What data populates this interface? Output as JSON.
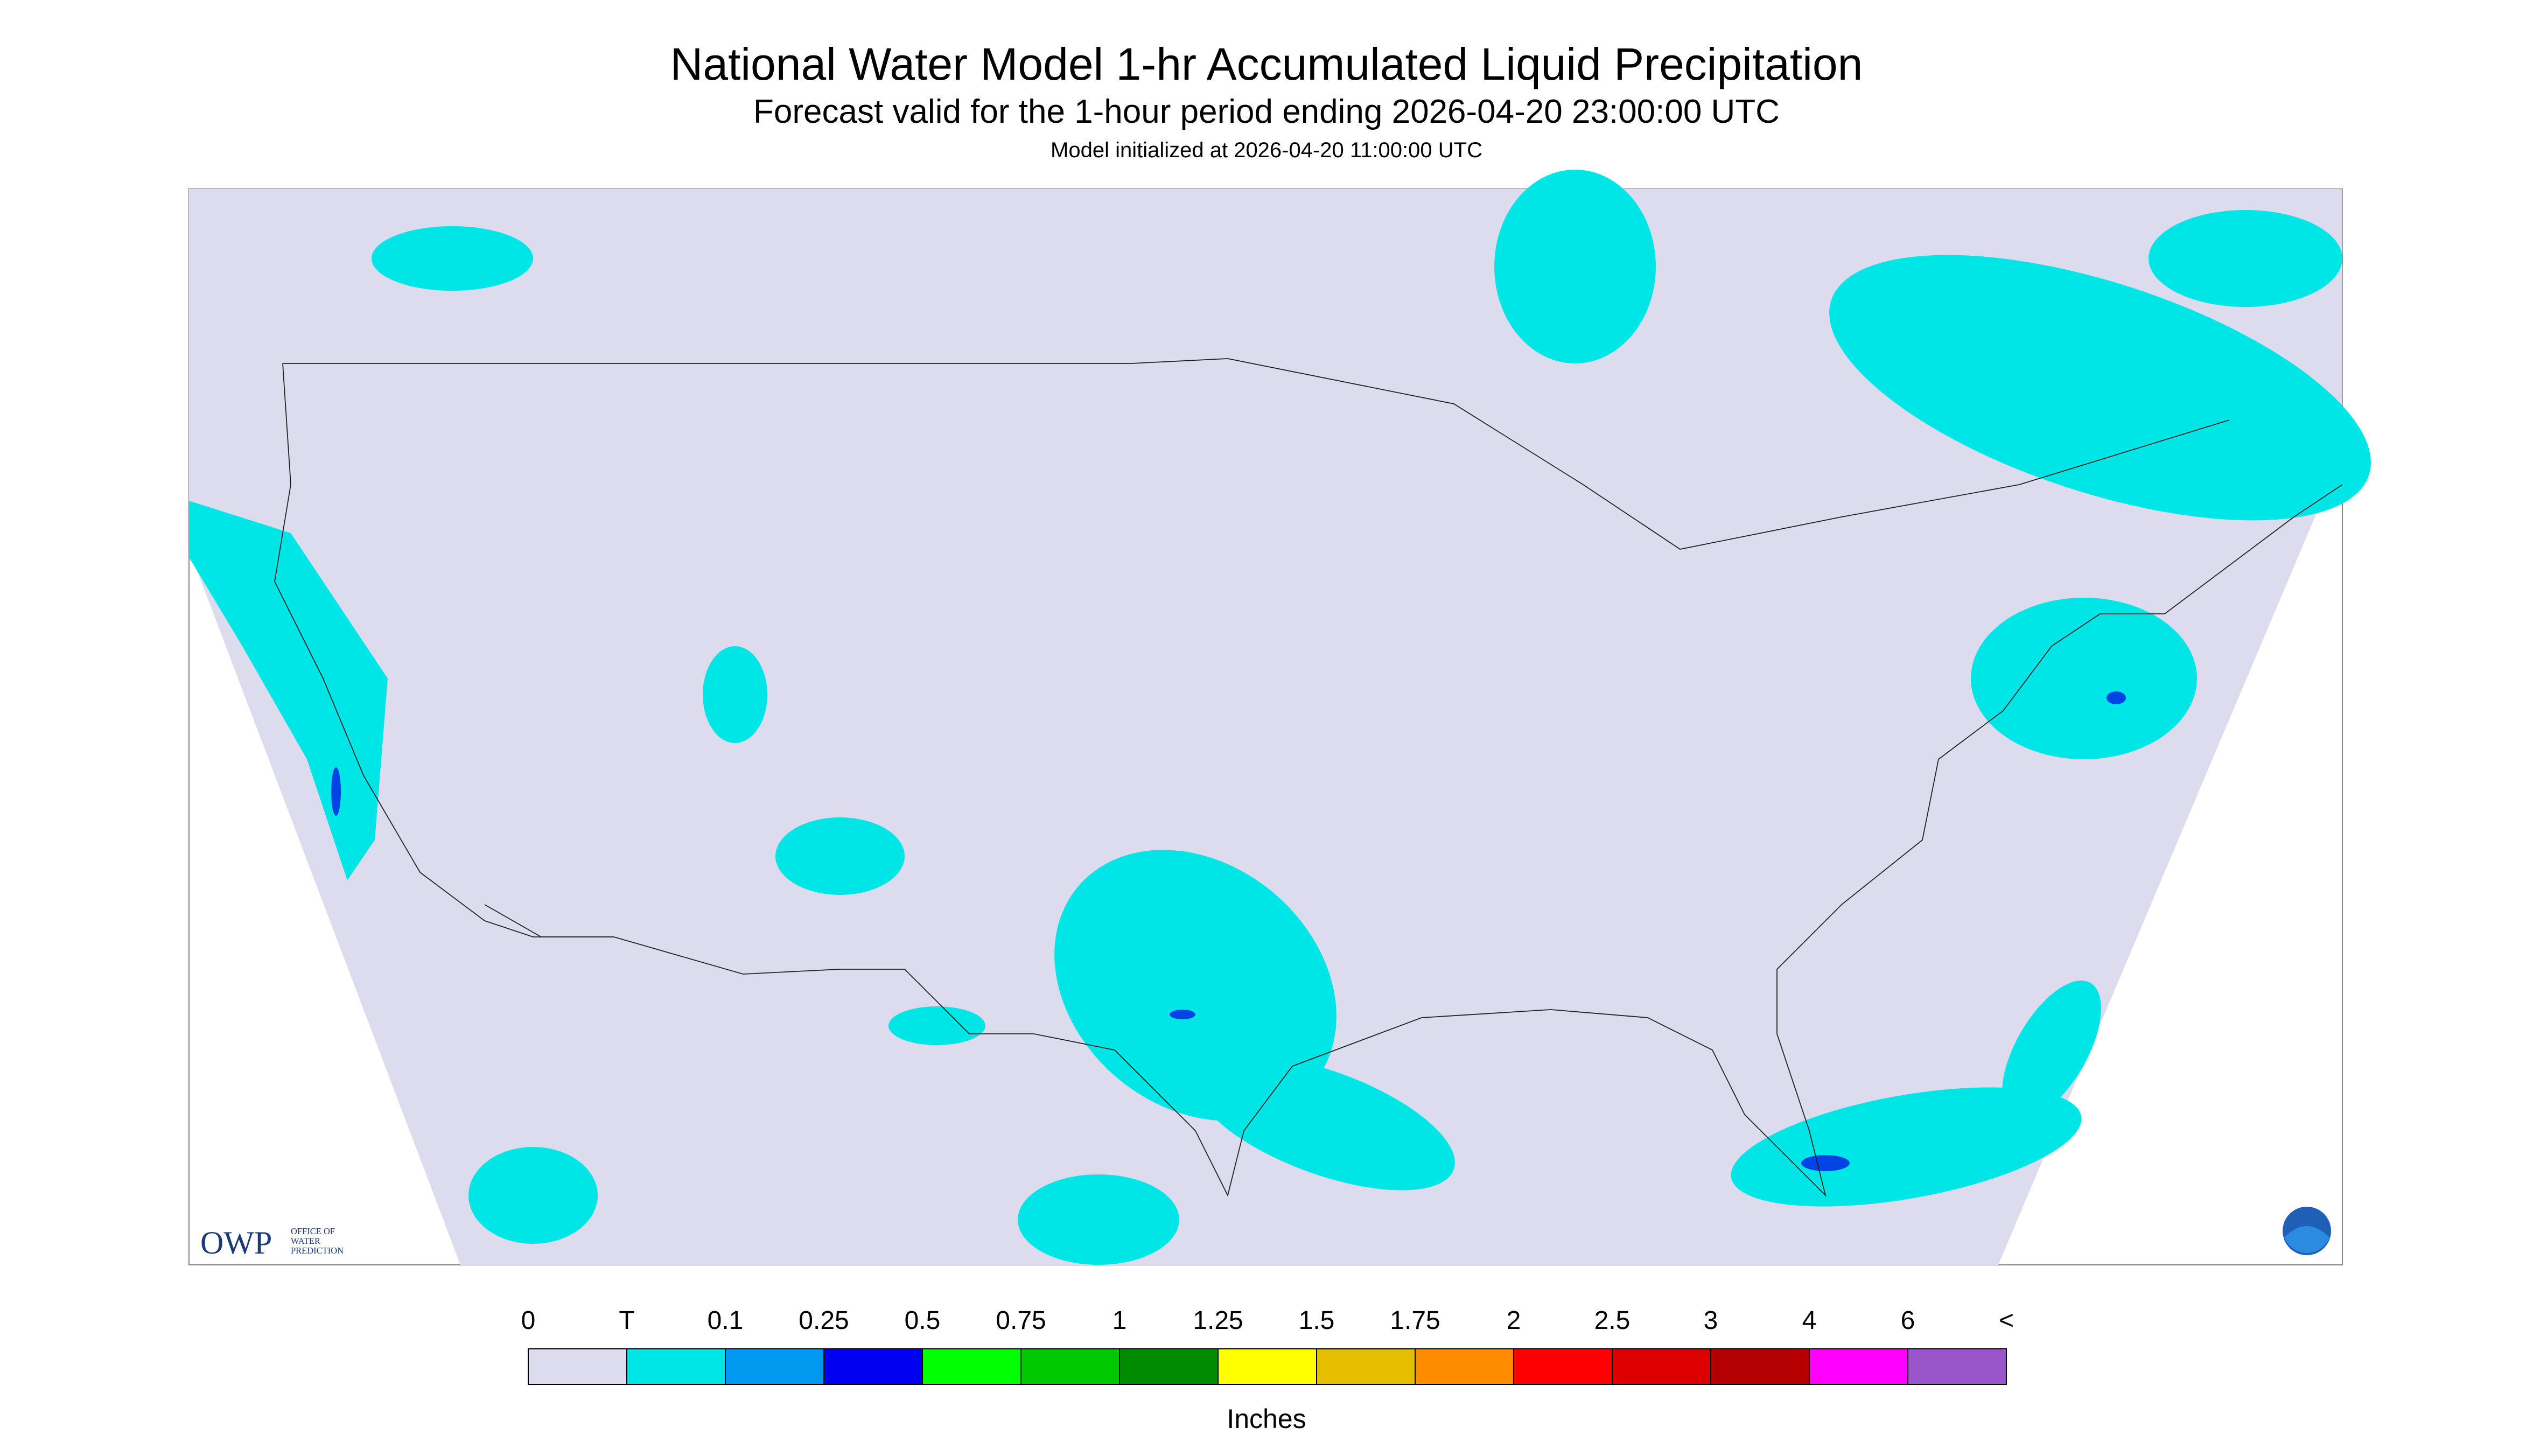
{
  "title": "National Water Model 1-hr Accumulated Liquid Precipitation",
  "subtitle": "Forecast valid for the 1-hour period ending 2026-04-20 23:00:00 UTC",
  "note": "Model initialized at 2026-04-20 11:00:00 UTC",
  "logo": {
    "name": "OWP",
    "lines": [
      "OFFICE OF",
      "WATER",
      "PREDICTION"
    ]
  },
  "legend": {
    "labels": [
      "0",
      "T",
      "0.1",
      "0.25",
      "0.5",
      "0.75",
      "1",
      "1.25",
      "1.5",
      "1.75",
      "2",
      "2.5",
      "3",
      "4",
      "6",
      "<"
    ],
    "colors": [
      "#dcdcee",
      "#00e6e6",
      "#0099f0",
      "#0000f0",
      "#00ff00",
      "#00c800",
      "#008c00",
      "#ffff00",
      "#e6be00",
      "#ff8c00",
      "#ff0000",
      "#dc0000",
      "#b40000",
      "#ff00ff",
      "#9955c9"
    ],
    "unit": "Inches"
  }
}
